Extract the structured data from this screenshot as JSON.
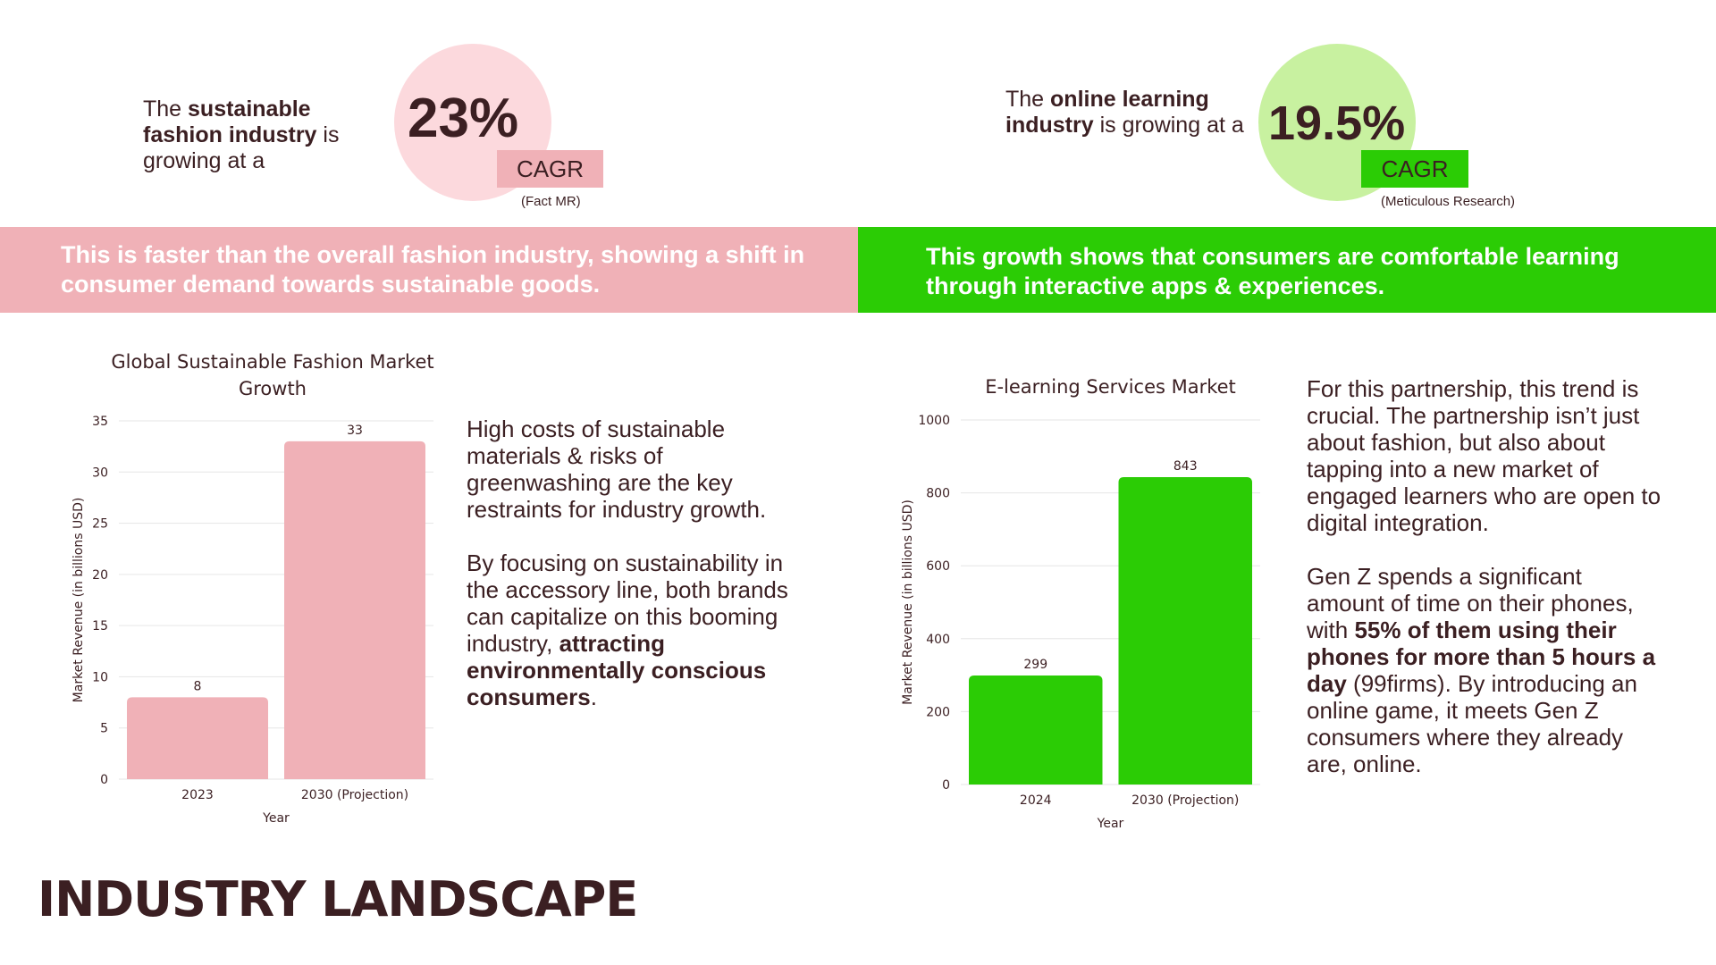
{
  "colors": {
    "pink": "#f0b1b7",
    "pink_light": "#fcd9dd",
    "green": "#2bcc05",
    "green_light": "#c8f1a0",
    "dark": "#3b1f22"
  },
  "left_stat": {
    "pre": "The ",
    "bold": "sustainable fashion industry",
    "post": " is growing at a",
    "value": "23%",
    "badge": "CAGR",
    "source": "(Fact MR)"
  },
  "right_stat": {
    "pre": "The ",
    "bold": "online learning industry",
    "post": " is growing at a",
    "value": "19.5%",
    "badge": "CAGR",
    "source": "(Meticulous Research)"
  },
  "bands": {
    "left": "This is faster than the overall fashion industry, showing a shift in consumer demand towards sustainable goods.",
    "right": "This growth shows that consumers are comfortable learning through interactive apps & experiences."
  },
  "left_text": {
    "p1": "High costs of sustainable materials & risks of greenwashing are the key restraints for industry growth.",
    "p2_pre": "By focusing on sustainability in the accessory line, both brands can capitalize on this booming industry, ",
    "p2_bold": "attracting environmentally conscious consumers",
    "p2_post": "."
  },
  "right_text": {
    "p1": "For this partnership, this trend is crucial. The partnership isn’t just about fashion, but also about tapping into a new market of engaged learners who are open to digital integration.",
    "p2_pre": "Gen Z spends a significant amount of time on their phones, with ",
    "p2_bold": "55% of them using their phones for more than 5 hours a day",
    "p2_post": " (99firms). By introducing an online game, it meets Gen Z consumers where they already are, online."
  },
  "heading": "INDUSTRY LANDSCAPE",
  "chart_data": [
    {
      "type": "bar",
      "title": "Global Sustainable Fashion Market Growth",
      "categories": [
        "2023",
        "2030 (Projection)"
      ],
      "values": [
        8,
        33
      ],
      "xlabel": "Year",
      "ylabel": "Market Revenue (in billions USD)",
      "ylim": [
        0,
        35
      ],
      "yticks": [
        0,
        5,
        10,
        15,
        20,
        25,
        30,
        35
      ],
      "color": "#f0b1b7",
      "grid": true
    },
    {
      "type": "bar",
      "title": "E-learning Services Market",
      "categories": [
        "2024",
        "2030 (Projection)"
      ],
      "values": [
        299,
        843
      ],
      "xlabel": "Year",
      "ylabel": "Market Revenue (in billions USD)",
      "ylim": [
        0,
        1000
      ],
      "yticks": [
        0,
        200,
        400,
        600,
        800,
        1000
      ],
      "color": "#2bcc05",
      "grid": true
    }
  ]
}
